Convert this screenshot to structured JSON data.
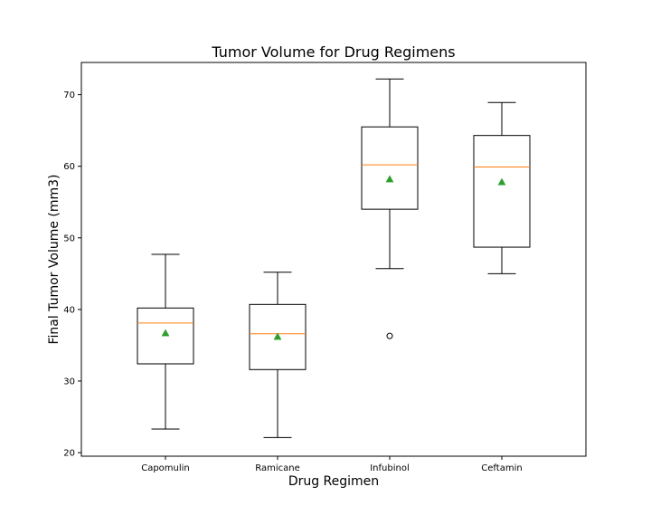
{
  "chart_data": {
    "type": "boxplot",
    "title": "Tumor Volume for Drug Regimens",
    "xlabel": "Drug Regimen",
    "ylabel": "Final Tumor Volume (mm3)",
    "ylim": [
      19.5,
      74.5
    ],
    "yticks": [
      20,
      30,
      40,
      50,
      60,
      70
    ],
    "grid": false,
    "categories": [
      "Capomulin",
      "Ramicane",
      "Infubinol",
      "Ceftamin"
    ],
    "boxes": [
      {
        "whisker_low": 23.3,
        "q1": 32.4,
        "median": 38.1,
        "q3": 40.2,
        "whisker_high": 47.7,
        "mean": 36.7,
        "outliers": []
      },
      {
        "whisker_low": 22.1,
        "q1": 31.6,
        "median": 36.6,
        "q3": 40.7,
        "whisker_high": 45.2,
        "mean": 36.2,
        "outliers": []
      },
      {
        "whisker_low": 45.7,
        "q1": 54.0,
        "median": 60.2,
        "q3": 65.5,
        "whisker_high": 72.2,
        "mean": 58.2,
        "outliers": [
          36.3
        ]
      },
      {
        "whisker_low": 45.0,
        "q1": 48.7,
        "median": 59.9,
        "q3": 64.3,
        "whisker_high": 68.9,
        "mean": 57.8,
        "outliers": []
      }
    ],
    "colors": {
      "box": "#000000",
      "median": "#ff7f0e",
      "mean": "#2ca02c",
      "outlier": "#000000"
    }
  }
}
